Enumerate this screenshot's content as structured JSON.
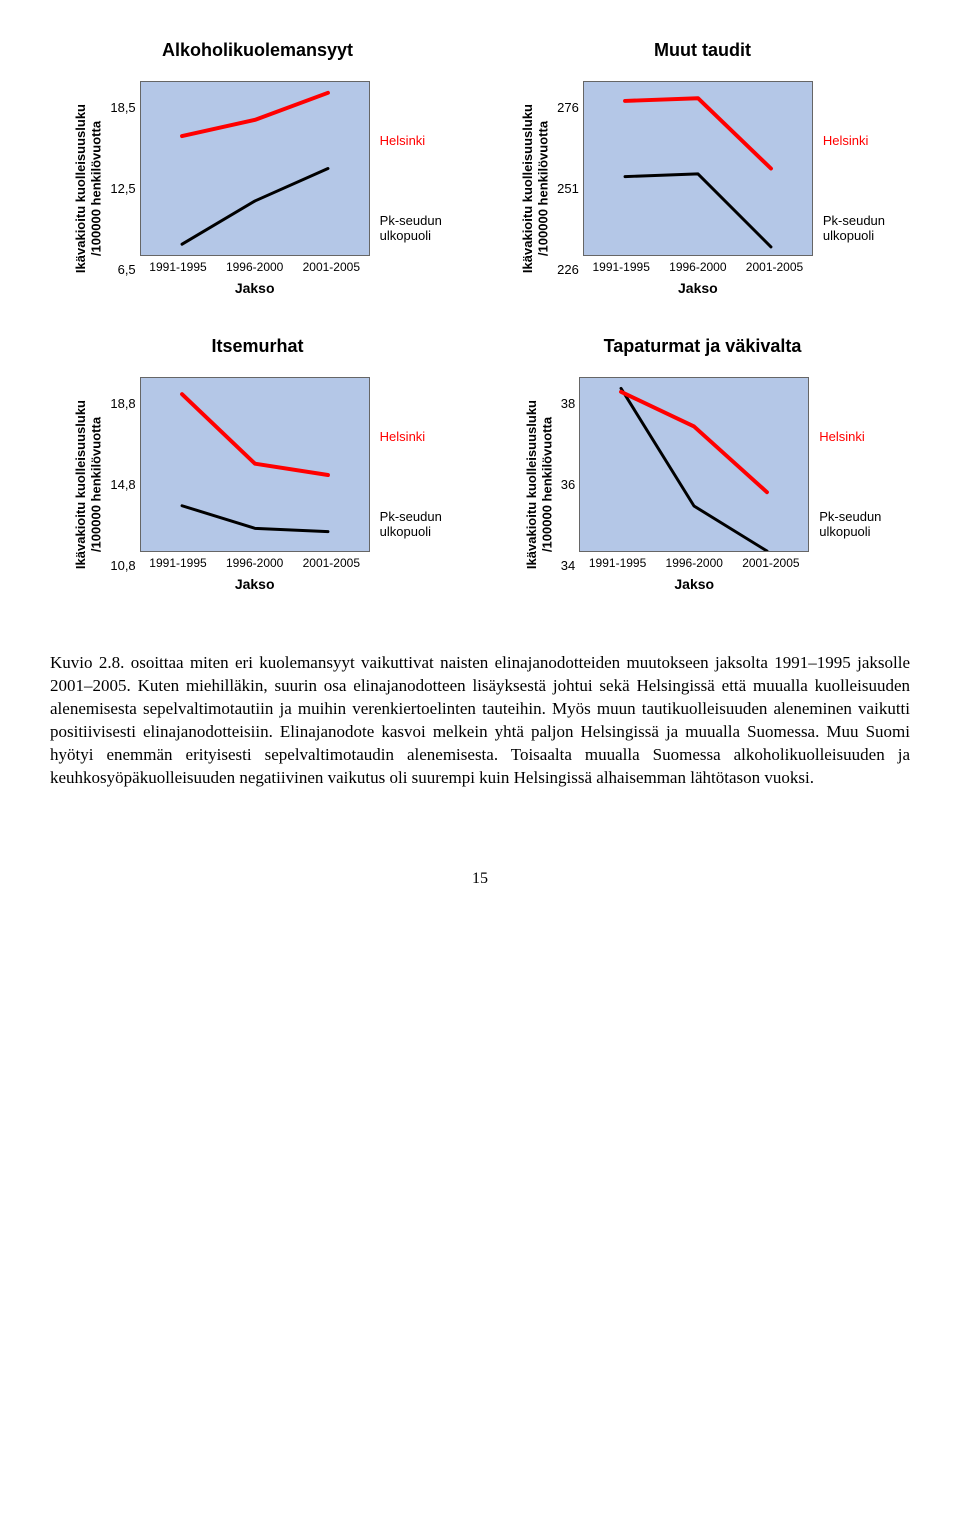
{
  "labels": {
    "ylabel_line1": "Ikävakioitu kuolleisuusluku",
    "ylabel_line2": "/100000 henkilövuotta",
    "xlabel": "Jakso",
    "legend_helsinki": "Helsinki",
    "legend_pk1": "Pk-seudun",
    "legend_pk2": "ulkopuoli"
  },
  "charts": {
    "alko": {
      "title": "Alkoholikuolemansyyt",
      "bg": "#b4c7e7",
      "yticks": [
        "18,5",
        "12,5",
        "6,5"
      ],
      "xticks": [
        "1991-1995",
        "1996-2000",
        "2001-2005"
      ],
      "helsinki": {
        "color": "#ff0000",
        "width": 4,
        "y": [
          17.5,
          19.0,
          21.5
        ]
      },
      "pk": {
        "color": "#000000",
        "width": 3,
        "y": [
          7.5,
          11.5,
          14.5
        ]
      },
      "ylim": [
        6.5,
        22.5
      ]
    },
    "muut": {
      "title": "Muut taudit",
      "bg": "#b4c7e7",
      "yticks": [
        "276",
        "251",
        "226"
      ],
      "xticks": [
        "1991-1995",
        "1996-2000",
        "2001-2005"
      ],
      "helsinki": {
        "color": "#ff0000",
        "width": 4,
        "y": [
          283,
          284,
          258
        ]
      },
      "pk": {
        "color": "#000000",
        "width": 3,
        "y": [
          255,
          256,
          229
        ]
      },
      "ylim": [
        226,
        290
      ]
    },
    "itse": {
      "title": "Itsemurhat",
      "bg": "#b4c7e7",
      "yticks": [
        "18,8",
        "14,8",
        "10,8"
      ],
      "xticks": [
        "1991-1995",
        "1996-2000",
        "2001-2005"
      ],
      "helsinki": {
        "color": "#ff0000",
        "width": 4,
        "y": [
          20.5,
          16.2,
          15.5
        ]
      },
      "pk": {
        "color": "#000000",
        "width": 3,
        "y": [
          13.6,
          12.2,
          12.0
        ]
      },
      "ylim": [
        10.8,
        21.5
      ]
    },
    "tapa": {
      "title": "Tapaturmat ja väkivalta",
      "bg": "#b4c7e7",
      "yticks": [
        "38",
        "36",
        "34"
      ],
      "xticks": [
        "1991-1995",
        "1996-2000",
        "2001-2005"
      ],
      "helsinki": {
        "color": "#ff0000",
        "width": 4,
        "y": [
          38.6,
          37.6,
          35.7
        ]
      },
      "pk": {
        "color": "#000000",
        "width": 3,
        "y": [
          38.7,
          35.3,
          34.0
        ]
      },
      "ylim": [
        34,
        39
      ]
    }
  },
  "paragraph": "Kuvio 2.8. osoittaa miten eri kuolemansyyt vaikuttivat naisten elinajanodotteiden muutokseen jaksolta 1991–1995 jaksolle 2001–2005. Kuten miehilläkin, suurin osa elinajanodotteen lisäyksestä johtui sekä Helsingissä että muualla kuolleisuuden alenemisesta sepelvaltimotautiin ja muihin verenkiertoelinten tauteihin. Myös muun tautikuolleisuuden aleneminen vaikutti positiivisesti elinajanodotteisiin. Elinajanodote kasvoi melkein yhtä paljon Helsingissä ja muualla Suomessa. Muu Suomi hyötyi enemmän erityisesti sepelvaltimotaudin alenemisesta. Toisaalta muualla Suomessa alkoholikuolleisuuden ja keuhkosyöpäkuolleisuuden negatiivinen vaikutus oli suurempi kuin Helsingissä alhaisemman lähtötason vuoksi.",
  "page_number": "15"
}
